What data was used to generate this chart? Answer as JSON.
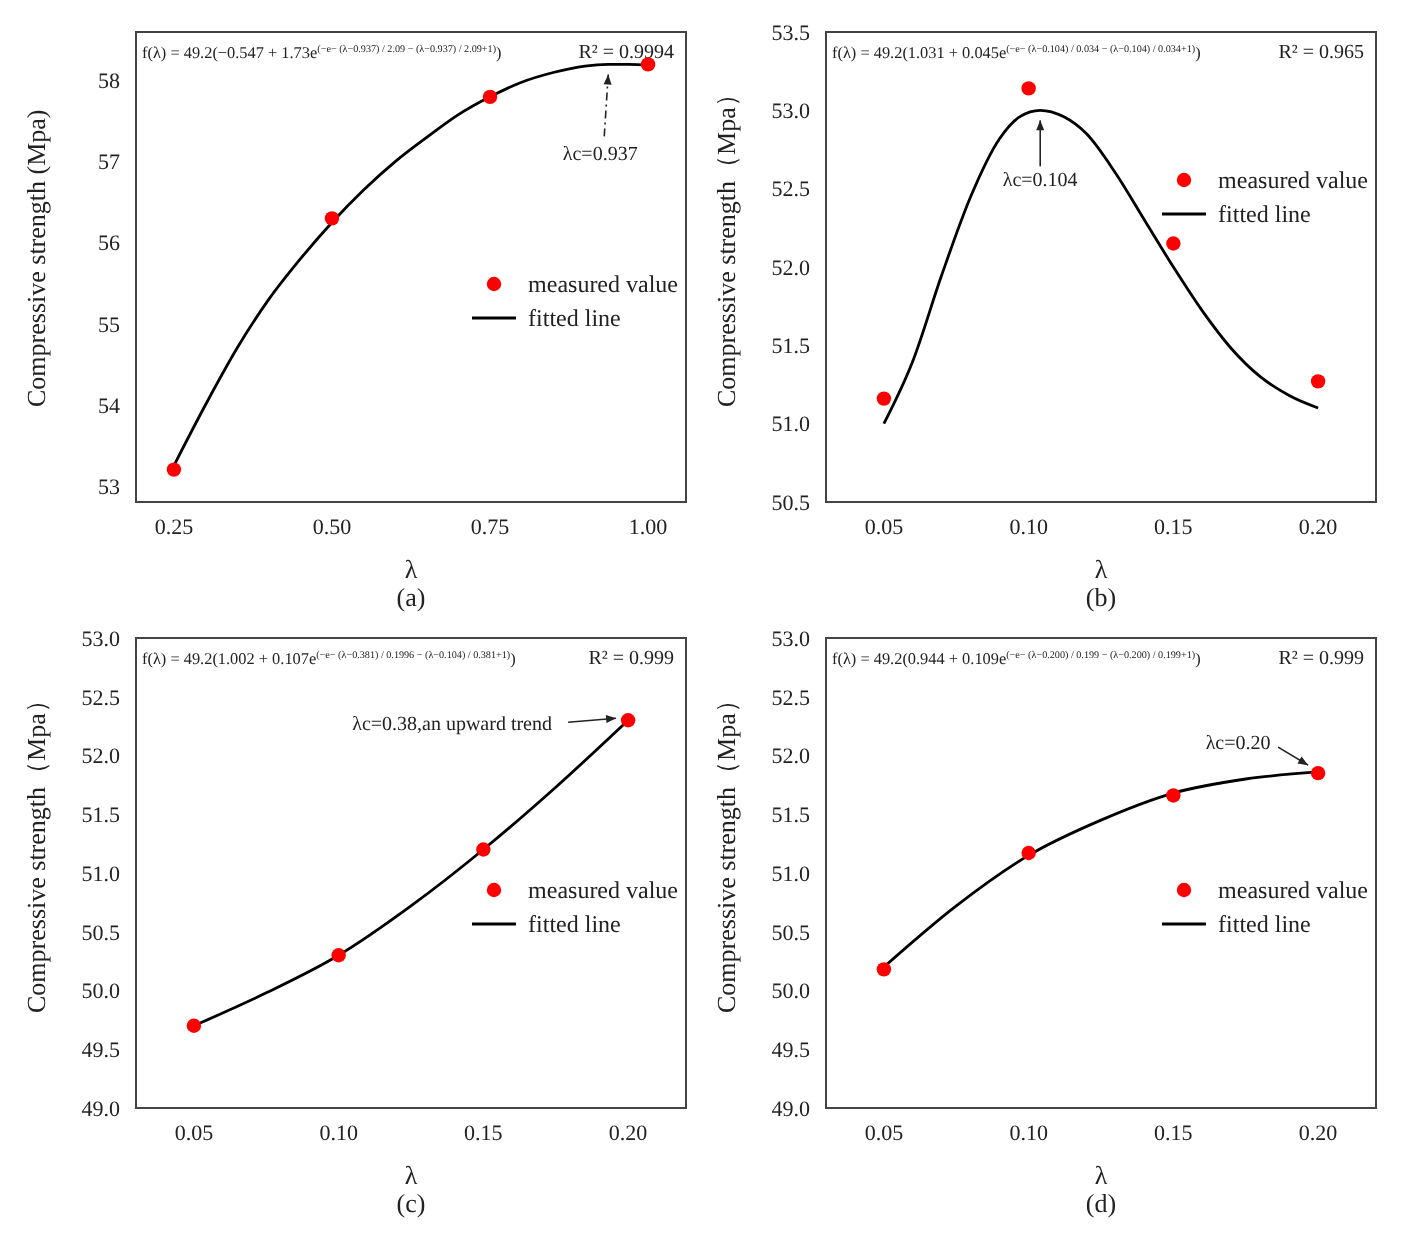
{
  "chart_data": [
    {
      "type": "scatter",
      "xlabel": "λ",
      "ylabel": "Compressive strength (Mpa)",
      "xlim": [
        0.19,
        1.06
      ],
      "ylim": [
        52.8,
        58.6
      ],
      "xticks": [
        0.25,
        {
          "value": 0.5,
          "label": "0.50"
        },
        0.75,
        {
          "value": 1,
          "label": "1.00"
        }
      ],
      "yticks": [
        53,
        54,
        55,
        56,
        57,
        58
      ],
      "legend": "right",
      "series": [
        {
          "name": "measured value",
          "color": "#ff0000",
          "marker": "circle",
          "x": [
            0.25,
            0.5,
            0.75,
            1.0
          ],
          "values": [
            53.2,
            56.3,
            57.8,
            58.2
          ]
        },
        {
          "name": "fitted line",
          "type": "line",
          "color": "#000000",
          "marker": "none",
          "line_style": "solid",
          "x": [
            0.25,
            0.3,
            0.35,
            0.4,
            0.45,
            0.5,
            0.55,
            0.6,
            0.65,
            0.7,
            0.75,
            0.8,
            0.85,
            0.9,
            0.937,
            0.97,
            1.0
          ],
          "values": [
            53.25,
            54.0,
            54.7,
            55.3,
            55.8,
            56.25,
            56.65,
            57.0,
            57.3,
            57.58,
            57.8,
            57.98,
            58.1,
            58.18,
            58.2,
            58.2,
            58.19
          ]
        }
      ],
      "annotations": [
        "f(λ) = 49.2(−0.547 + 1.73e$^{(−e− (λ−0.937) / 2.09 − (λ−0.937) / 2.09+1)}$)",
        "R² = 0.9994",
        "(a)",
        {
          "text": "λc=0.937",
          "x": 0.937,
          "y": 58.2
        }
      ]
    },
    {
      "type": "scatter",
      "xlabel": "λ",
      "ylabel": "Compressive strength（Mpa）",
      "xlim": [
        0.03,
        0.22
      ],
      "ylim": [
        50.5,
        53.5
      ],
      "xticks": [
        0.05,
        {
          "value": 0.1,
          "label": "0.10"
        },
        0.15,
        {
          "value": 0.2,
          "label": "0.20"
        }
      ],
      "yticks": [
        50.5,
        {
          "value": 51,
          "label": "51.0"
        },
        51.5,
        {
          "value": 52,
          "label": "52.0"
        },
        52.5,
        {
          "value": 53,
          "label": "53.0"
        },
        53.5
      ],
      "legend": "top right",
      "series": [
        {
          "name": "measured value",
          "color": "#ff0000",
          "marker": "circle",
          "x": [
            0.05,
            0.1,
            0.15,
            0.2
          ],
          "values": [
            51.16,
            53.14,
            52.15,
            51.27
          ]
        },
        {
          "name": "fitted line",
          "type": "line",
          "color": "#000000",
          "marker": "none",
          "line_style": "solid",
          "x": [
            0.05,
            0.06,
            0.07,
            0.08,
            0.09,
            0.097,
            0.104,
            0.112,
            0.12,
            0.13,
            0.14,
            0.15,
            0.16,
            0.17,
            0.18,
            0.19,
            0.2
          ],
          "values": [
            51.0,
            51.4,
            51.95,
            52.45,
            52.82,
            52.96,
            53.0,
            52.96,
            52.85,
            52.6,
            52.3,
            52.0,
            51.72,
            51.48,
            51.3,
            51.18,
            51.1
          ]
        }
      ],
      "annotations": [
        "f(λ) = 49.2(1.031 + 0.045e$^{(−e− (λ−0.104) / 0.034 − (λ−0.104) / 0.034+1)}$)",
        "R² = 0.965",
        "(b)",
        {
          "text": "λc=0.104",
          "x": 0.104,
          "y": 53.0
        }
      ]
    },
    {
      "type": "scatter",
      "xlabel": "λ",
      "ylabel": "Compressive strength（Mpa）",
      "xlim": [
        0.03,
        0.22
      ],
      "ylim": [
        49,
        53
      ],
      "xticks": [
        0.05,
        {
          "value": 0.1,
          "label": "0.10"
        },
        0.15,
        {
          "value": 0.2,
          "label": "0.20"
        }
      ],
      "yticks": [
        {
          "value": 49,
          "label": "49.0"
        },
        49.5,
        {
          "value": 50,
          "label": "50.0"
        },
        50.5,
        {
          "value": 51,
          "label": "51.0"
        },
        51.5,
        {
          "value": 52,
          "label": "52.0"
        },
        52.5,
        {
          "value": 53,
          "label": "53.0"
        }
      ],
      "legend": "right",
      "series": [
        {
          "name": "measured value",
          "color": "#ff0000",
          "marker": "circle",
          "x": [
            0.05,
            0.1,
            0.15,
            0.2
          ],
          "values": [
            49.7,
            50.3,
            51.2,
            52.3
          ]
        },
        {
          "name": "fitted line",
          "type": "line",
          "color": "#000000",
          "marker": "none",
          "line_style": "solid",
          "x": [
            0.05,
            0.075,
            0.1,
            0.125,
            0.15,
            0.175,
            0.2
          ],
          "values": [
            49.7,
            49.98,
            50.3,
            50.72,
            51.2,
            51.73,
            52.3
          ]
        }
      ],
      "annotations": [
        "f(λ) = 49.2(1.002 + 0.107e$^{(−e− (λ−0.381) / 0.1996 − (λ−0.104) / 0.381+1)}$)",
        "R² = 0.999",
        "(c)",
        {
          "text": "λc=0.38,an upward trend",
          "x": 0.2,
          "y": 52.3
        }
      ]
    },
    {
      "type": "scatter",
      "xlabel": "λ",
      "ylabel": "Compressive strength（Mpa）",
      "xlim": [
        0.03,
        0.22
      ],
      "ylim": [
        49,
        53
      ],
      "xticks": [
        0.05,
        {
          "value": 0.1,
          "label": "0.10"
        },
        0.15,
        {
          "value": 0.2,
          "label": "0.20"
        }
      ],
      "yticks": [
        {
          "value": 49,
          "label": "49.0"
        },
        49.5,
        {
          "value": 50,
          "label": "50.0"
        },
        50.5,
        {
          "value": 51,
          "label": "51.0"
        },
        51.5,
        {
          "value": 52,
          "label": "52.0"
        },
        52.5,
        {
          "value": 53,
          "label": "53.0"
        }
      ],
      "legend": "right",
      "series": [
        {
          "name": "measured value",
          "color": "#ff0000",
          "marker": "circle",
          "x": [
            0.05,
            0.1,
            0.15,
            0.2
          ],
          "values": [
            50.18,
            51.17,
            51.66,
            51.85
          ]
        },
        {
          "name": "fitted line",
          "type": "line",
          "color": "#000000",
          "marker": "none",
          "line_style": "solid",
          "x": [
            0.05,
            0.075,
            0.1,
            0.125,
            0.15,
            0.175,
            0.2
          ],
          "values": [
            50.2,
            50.72,
            51.15,
            51.45,
            51.68,
            51.8,
            51.86
          ]
        }
      ],
      "annotations": [
        "f(λ) = 49.2(0.944 + 0.109e$^{(−e− (λ−0.200) / 0.199 − (λ−0.200) / 0.199+1)}$)",
        "R² = 0.999",
        "(d)",
        {
          "text": "λc=0.20",
          "x": 0.2,
          "y": 51.85
        }
      ]
    }
  ]
}
